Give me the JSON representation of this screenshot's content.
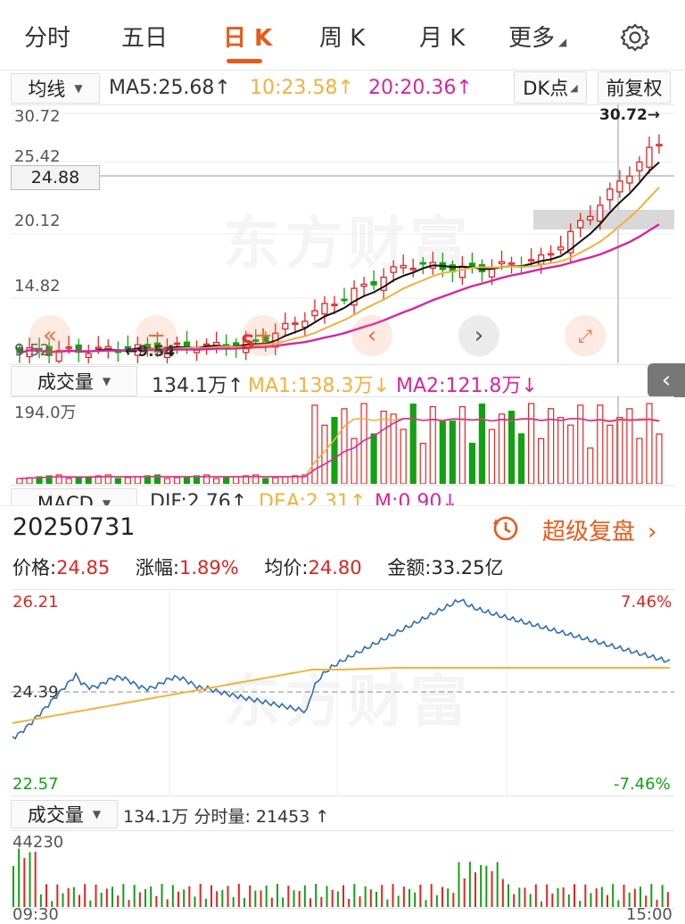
{
  "tabs": [
    "分时",
    "五日",
    "日 K",
    "周 K",
    "月 K",
    "更多"
  ],
  "active_tab": "日 K",
  "settings_icon": "gear-icon",
  "ma_row": {
    "selector": "均线",
    "ma5": "MA5:25.68",
    "ma10": "10:23.58",
    "ma20": "20:20.36",
    "dk_button": "DK点",
    "adjust_button": "前复权"
  },
  "kline": {
    "y_labels": [
      "30.72",
      "25.42",
      "20.12",
      "14.82",
      "9.52"
    ],
    "crosshair_price": "24.88",
    "max_label": "30.72",
    "min_label": "9.54",
    "watermark": "东方财富",
    "signal_s": "S",
    "colors": {
      "ma5": "#111111",
      "ma10": "#f2b13c",
      "ma20": "#d6269e",
      "up": "#e02424",
      "down": "#13a013"
    }
  },
  "volume_row": {
    "selector": "成交量",
    "value": "134.1万",
    "ma1": "MA1:138.3万",
    "ma2": "MA2:121.8万",
    "y_label": "194.0万"
  },
  "macd_row": {
    "selector": "MACD",
    "dif": "DIF:2.76",
    "dea": "DEA:2.31",
    "m": "M:0.90"
  },
  "detail": {
    "date": "20250731",
    "replay_label": "超级复盘",
    "price_label": "价格:",
    "price": "24.85",
    "change_label": "涨幅:",
    "change": "1.89%",
    "avg_label": "均价:",
    "avg": "24.80",
    "amount_label": "金额:",
    "amount": "33.25亿"
  },
  "intraday": {
    "y_high": "26.21",
    "y_mid": "24.39",
    "y_low": "22.57",
    "pct_high": "7.46%",
    "pct_low": "-7.46%",
    "watermark": "东方财富"
  },
  "intraday_volume": {
    "selector": "成交量",
    "value": "134.1万",
    "minute_vol": "分时量: 21453",
    "y_label": "44230",
    "t_start": "09:30",
    "t_end": "15:00"
  }
}
